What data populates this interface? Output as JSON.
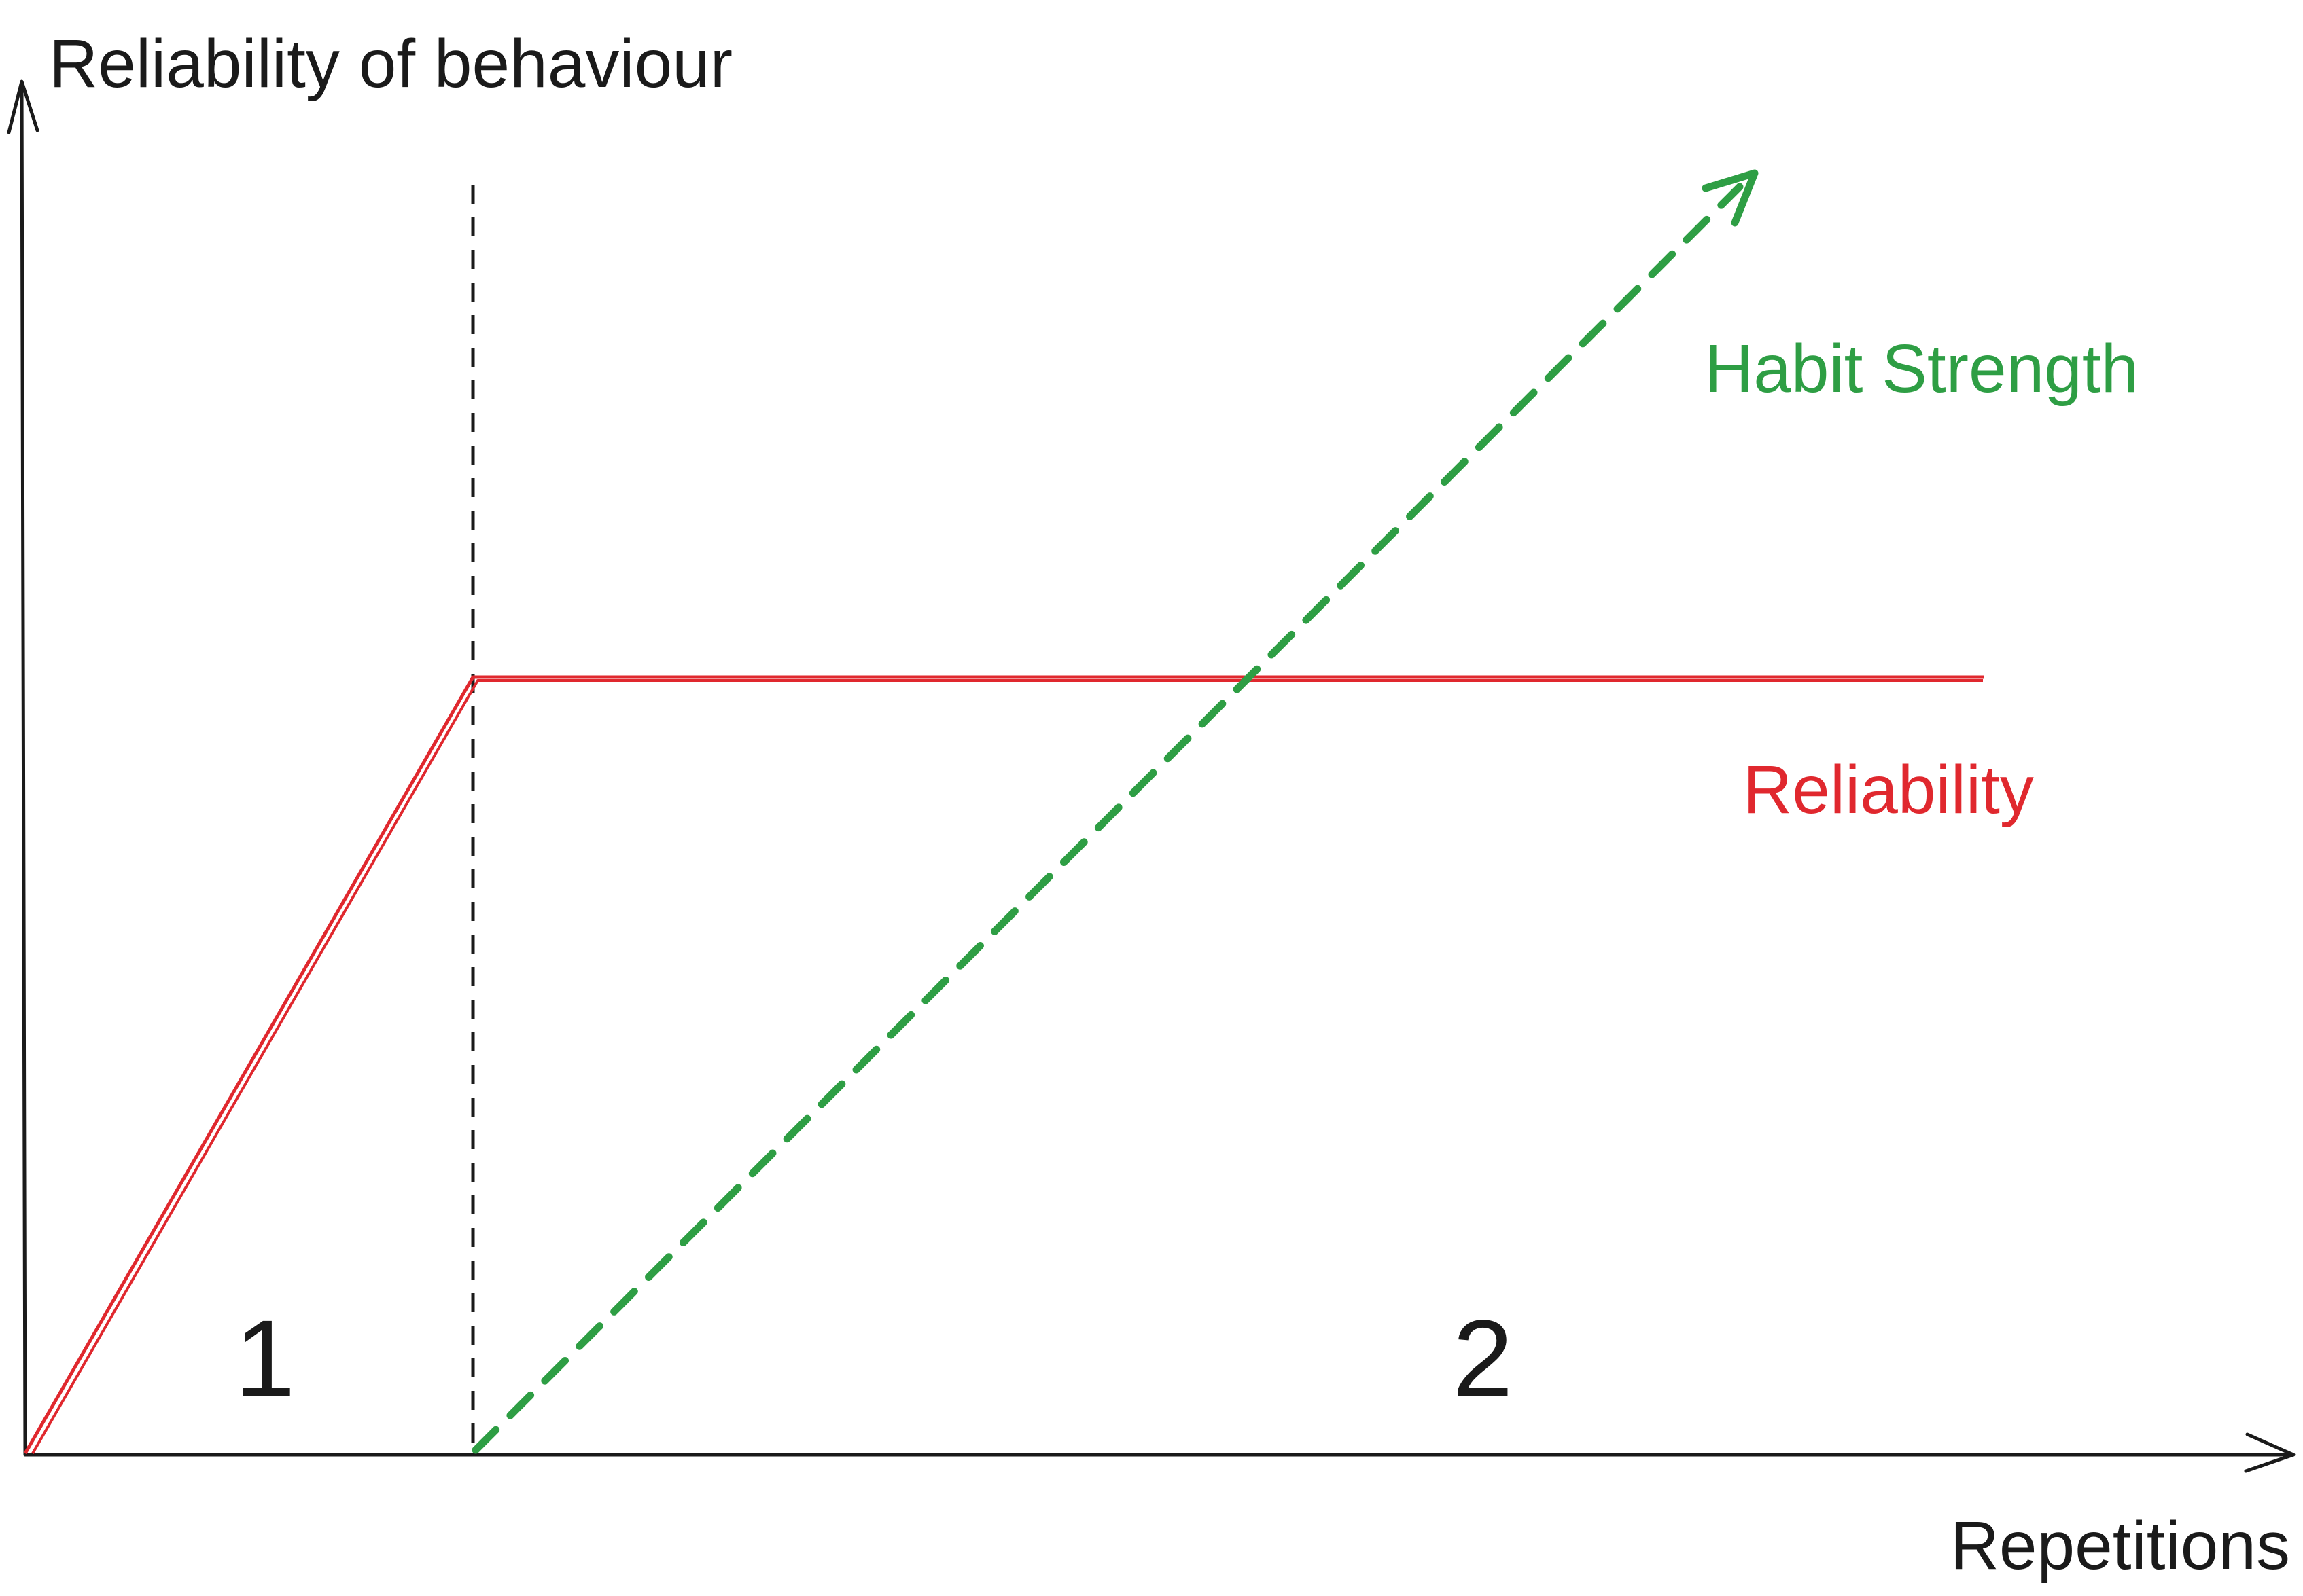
{
  "diagram": {
    "y_axis_label": "Reliability of behaviour",
    "x_axis_label": "Repetitions",
    "phase_1_label": "1",
    "phase_2_label": "2",
    "habit_label": "Habit Strength",
    "reliability_label": "Reliability"
  },
  "colors": {
    "axis": "#1a1a1a",
    "reliability": "#e0282e",
    "habit": "#2e9e44"
  }
}
